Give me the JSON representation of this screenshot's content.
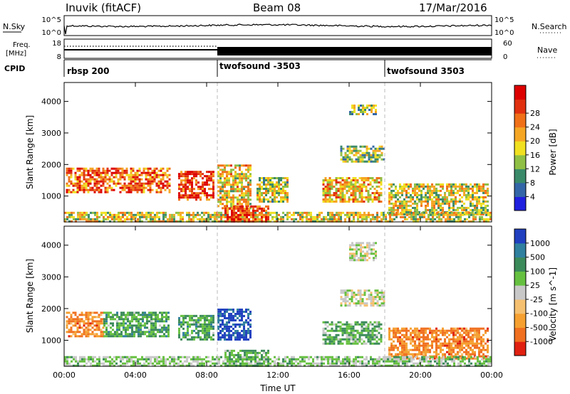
{
  "header": {
    "station": "Inuvik (fitACF)",
    "beam": "Beam 08",
    "date": "17/Mar/2016"
  },
  "nsky_panel": {
    "label": "N.Sky",
    "right_label": "N.Search",
    "left_ticks": [
      "10^5",
      "10^0"
    ],
    "right_ticks": [
      "10^5",
      "10^0"
    ]
  },
  "freq_panel": {
    "label_line1": "Freq.",
    "label_line2": "[MHz]",
    "left_ticks": [
      "18",
      "8"
    ],
    "right_ticks": [
      "60",
      "0"
    ],
    "right_label": "Nave"
  },
  "cpid_panel": {
    "label": "CPID",
    "programs": [
      {
        "name": "rbsp 200",
        "start_h": 0
      },
      {
        "name": "twofsound -3503",
        "start_h": 8.5
      },
      {
        "name": "twofsound 3503",
        "start_h": 18
      }
    ]
  },
  "chart_data": [
    {
      "type": "heatmap",
      "title": "",
      "xlabel": "",
      "ylabel": "Slant Range [km]",
      "xlim_hours": [
        0,
        24
      ],
      "ylim": [
        180,
        4600
      ],
      "yticks": [
        "1000",
        "2000",
        "3000",
        "4000"
      ],
      "colorbar": {
        "label": "Power [dB]",
        "ticks": [
          "4",
          "8",
          "12",
          "16",
          "20",
          "24",
          "28"
        ],
        "colors": [
          "#1f1fdf",
          "#3366a8",
          "#3a8a6a",
          "#8fbf44",
          "#f0e020",
          "#f5a623",
          "#f07018",
          "#e03010",
          "#dd0000"
        ]
      },
      "echo_regions": [
        {
          "t0": 0.1,
          "t1": 5.9,
          "r0": 1100,
          "r1": 1900,
          "level": 0.75
        },
        {
          "t0": 6.4,
          "t1": 8.4,
          "r0": 900,
          "r1": 1800,
          "level": 0.85
        },
        {
          "t0": 8.6,
          "t1": 10.5,
          "r0": 600,
          "r1": 2000,
          "level": 0.55
        },
        {
          "t0": 10.8,
          "t1": 12.5,
          "r0": 800,
          "r1": 1600,
          "level": 0.45
        },
        {
          "t0": 14.5,
          "t1": 17.8,
          "r0": 800,
          "r1": 1600,
          "level": 0.6
        },
        {
          "t0": 15.5,
          "t1": 18.0,
          "r0": 2100,
          "r1": 2600,
          "level": 0.4
        },
        {
          "t0": 18.2,
          "t1": 23.8,
          "r0": 400,
          "r1": 1400,
          "level": 0.5
        },
        {
          "t0": 0.0,
          "t1": 24.0,
          "r0": 180,
          "r1": 500,
          "level": 0.5
        },
        {
          "t0": 9.0,
          "t1": 11.5,
          "r0": 180,
          "r1": 700,
          "level": 0.85
        },
        {
          "t0": 16.0,
          "t1": 17.5,
          "r0": 3600,
          "r1": 3900,
          "level": 0.4
        }
      ]
    },
    {
      "type": "heatmap",
      "title": "",
      "xlabel": "Time UT",
      "ylabel": "Slant Range [km]",
      "xlim_hours": [
        0,
        24
      ],
      "ylim": [
        180,
        4600
      ],
      "xticks": [
        "00:00",
        "04:00",
        "08:00",
        "12:00",
        "16:00",
        "20:00",
        "00:00"
      ],
      "yticks": [
        "1000",
        "2000",
        "3000",
        "4000"
      ],
      "colorbar": {
        "label": "Velocity [m s^-1]",
        "ticks": [
          "1000",
          "500",
          "100",
          "25",
          "-25",
          "-100",
          "-500",
          "-1000"
        ],
        "colors": [
          "#1f3fbf",
          "#2f7f9f",
          "#3b8a5a",
          "#66c040",
          "#c8c8c8",
          "#f5c070",
          "#f5a030",
          "#f07020",
          "#e02010"
        ]
      },
      "echo_regions": [
        {
          "t0": 0.1,
          "t1": 2.2,
          "r0": 1100,
          "r1": 1900,
          "level": -0.55
        },
        {
          "t0": 2.2,
          "t1": 5.9,
          "r0": 1100,
          "r1": 1900,
          "level": 0.35
        },
        {
          "t0": 6.4,
          "t1": 8.4,
          "r0": 1000,
          "r1": 1800,
          "level": 0.35
        },
        {
          "t0": 8.6,
          "t1": 10.5,
          "r0": 1000,
          "r1": 2000,
          "level": 0.9
        },
        {
          "t0": 14.5,
          "t1": 17.8,
          "r0": 900,
          "r1": 1600,
          "level": 0.3
        },
        {
          "t0": 15.5,
          "t1": 18.0,
          "r0": 2100,
          "r1": 2600,
          "level": 0.0
        },
        {
          "t0": 16.0,
          "t1": 17.5,
          "r0": 3500,
          "r1": 4100,
          "level": 0.0
        },
        {
          "t0": 18.2,
          "t1": 23.8,
          "r0": 400,
          "r1": 1400,
          "level": -0.55
        },
        {
          "t0": 0.0,
          "t1": 24.0,
          "r0": 180,
          "r1": 500,
          "level": 0.15
        },
        {
          "t0": 9.0,
          "t1": 11.5,
          "r0": 180,
          "r1": 700,
          "level": 0.3
        }
      ]
    }
  ]
}
